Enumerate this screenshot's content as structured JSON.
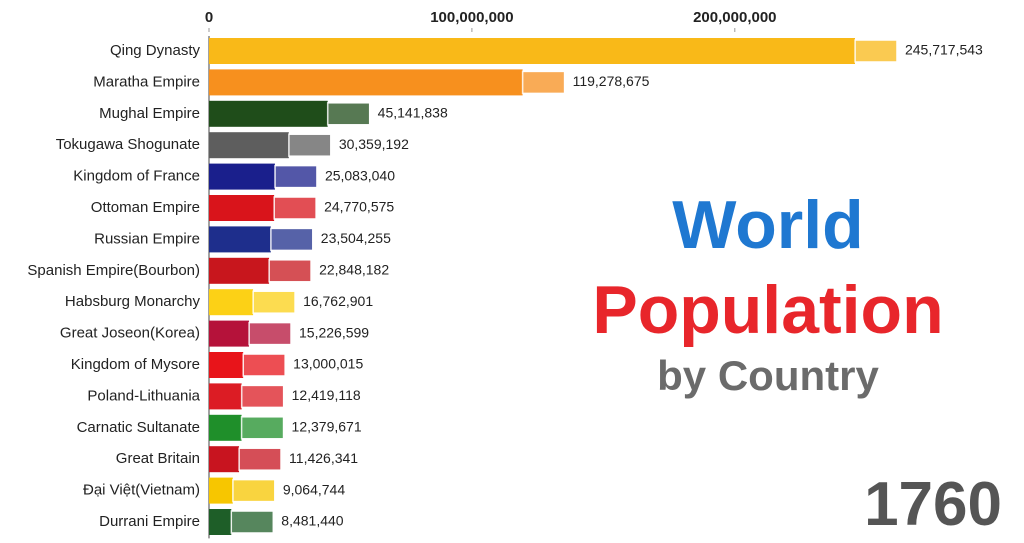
{
  "chart_data": {
    "type": "bar",
    "orientation": "horizontal",
    "title": "World",
    "subtitle": "Population",
    "caption": "by Country",
    "year": "1760",
    "categories": [
      "Qing Dynasty",
      "Maratha Empire",
      "Mughal Empire",
      "Tokugawa Shogunate",
      "Kingdom of France",
      "Ottoman Empire",
      "Russian Empire",
      "Spanish Empire(Bourbon)",
      "Habsburg Monarchy",
      "Great Joseon(Korea)",
      "Kingdom of Mysore",
      "Poland-Lithuania",
      "Carnatic Sultanate",
      "Great Britain",
      "Đại Việt(Vietnam)",
      "Durrani Empire"
    ],
    "values": [
      245717543,
      119278675,
      45141838,
      30359192,
      25083040,
      24770575,
      23504255,
      22848182,
      16762901,
      15226599,
      13000015,
      12419118,
      12379671,
      11426341,
      9064744,
      8481440
    ],
    "value_labels": [
      "245,717,543",
      "119,278,675",
      "45,141,838",
      "30,359,192",
      "25,083,040",
      "24,770,575",
      "23,504,255",
      "22,848,182",
      "16,762,901",
      "15,226,599",
      "13,000,015",
      "12,419,118",
      "12,379,671",
      "11,426,341",
      "9,064,744",
      "8,481,440"
    ],
    "colors": [
      "#f9b918",
      "#f7901e",
      "#1f4d1a",
      "#5e5e5e",
      "#1a1f8c",
      "#d9141b",
      "#1e2e8c",
      "#c8161d",
      "#fcd116",
      "#b5123a",
      "#e8141a",
      "#dc1c24",
      "#1f8f2a",
      "#c8141f",
      "#f7c600",
      "#1e5e28"
    ],
    "xlim": [
      0,
      310000000
    ],
    "xticks": [
      0,
      {
        "value": 100000000,
        "label": "100,000,000"
      },
      {
        "value": 200000000,
        "label": "200,000,000"
      }
    ],
    "title_color": "#1f78d1",
    "subtitle_color": "#e8262b",
    "caption_color": "#6b6b6b",
    "year_color": "#555555"
  }
}
